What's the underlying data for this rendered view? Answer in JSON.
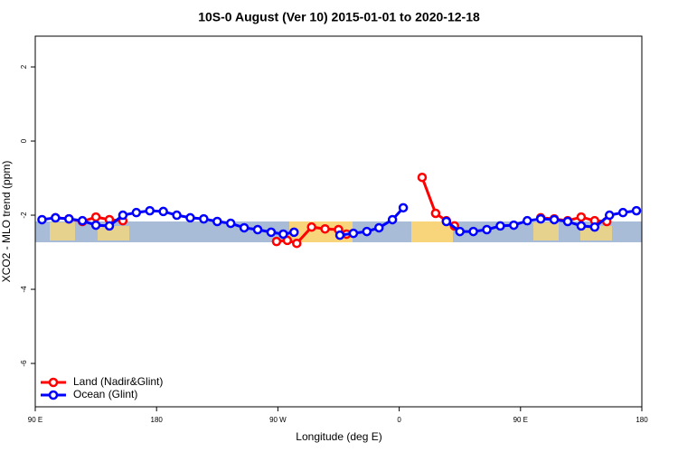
{
  "chart_data": {
    "type": "line",
    "title": "10S-0 August (Ver 10)   2015-01-01 to 2020-12-18",
    "x_label": "Longitude (deg E)",
    "y_label": "XCO2 - MLO trend (ppm)",
    "xlim": [
      90,
      540
    ],
    "ylim": [
      -7.17,
      2.83
    ],
    "xticks": [
      {
        "value": 90,
        "label": "90 E"
      },
      180,
      {
        "value": 270,
        "label": "90 W"
      },
      {
        "value": 360,
        "label": "0"
      },
      {
        "value": 450,
        "label": "90 E"
      },
      {
        "value": 540,
        "label": "180"
      }
    ],
    "yticks": [
      -6,
      -4,
      -2,
      0,
      2
    ],
    "legend": "bottom-left",
    "series": [
      {
        "name": "Land (Nadir&Glint)",
        "color": "#ff0000",
        "x": [
          105,
          115,
          125,
          135,
          145,
          155,
          null,
          269,
          277,
          284,
          295,
          305,
          315,
          321,
          null,
          377,
          387,
          395,
          401,
          null,
          465,
          475,
          485,
          495,
          505,
          514
        ],
        "values": [
          -2.07,
          -2.1,
          -2.17,
          -2.05,
          -2.12,
          -2.15,
          null,
          -2.71,
          -2.68,
          -2.76,
          -2.32,
          -2.37,
          -2.39,
          -2.51,
          null,
          -0.98,
          -1.95,
          -2.15,
          -2.29,
          null,
          -2.07,
          -2.1,
          -2.15,
          -2.05,
          -2.15,
          -2.17
        ]
      },
      {
        "name": "Ocean (Glint)",
        "color": "#0000ff",
        "x": [
          95,
          105,
          115,
          125,
          135,
          145,
          155,
          165,
          175,
          185,
          195,
          205,
          215,
          225,
          235,
          245,
          255,
          265,
          274,
          282,
          null,
          316,
          326,
          336,
          345,
          355,
          363,
          null,
          395,
          405,
          415,
          425,
          435,
          445,
          455,
          465,
          475,
          485,
          495,
          505,
          516,
          526,
          536
        ],
        "values": [
          -2.12,
          -2.07,
          -2.1,
          -2.15,
          -2.27,
          -2.29,
          -2.0,
          -1.93,
          -1.88,
          -1.9,
          -2.0,
          -2.07,
          -2.1,
          -2.17,
          -2.22,
          -2.34,
          -2.39,
          -2.46,
          -2.51,
          -2.46,
          null,
          -2.54,
          -2.49,
          -2.44,
          -2.34,
          -2.12,
          -1.8,
          null,
          -2.17,
          -2.44,
          -2.44,
          -2.39,
          -2.29,
          -2.27,
          -2.15,
          -2.1,
          -2.12,
          -2.17,
          -2.29,
          -2.32,
          -2.0,
          -1.93,
          -1.88
        ]
      }
    ]
  }
}
